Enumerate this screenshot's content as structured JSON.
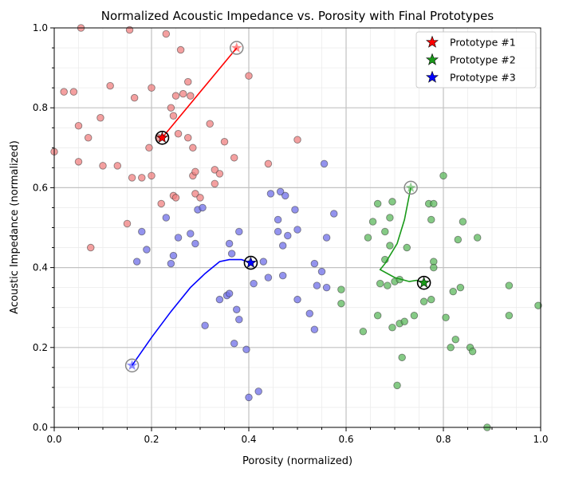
{
  "chart_data": {
    "type": "scatter",
    "title": "Normalized Acoustic Impedance vs. Porosity with Final Prototypes",
    "xlabel": "Porosity (normalized)",
    "ylabel": "Acoustic Impedance (normalized)",
    "xlim": [
      0.0,
      1.0
    ],
    "ylim": [
      0.0,
      1.0
    ],
    "xticks": [
      "0.0",
      "0.2",
      "0.4",
      "0.6",
      "0.8",
      "1.0"
    ],
    "yticks": [
      "0.0",
      "0.2",
      "0.4",
      "0.6",
      "0.8",
      "1.0"
    ],
    "grid": true,
    "legend_position": "top-right",
    "legend": [
      "Prototype #1",
      "Prototype #2",
      "Prototype #3"
    ],
    "colors": {
      "red": "#f08080",
      "green": "#5cb85c",
      "blue": "#6f6fe8",
      "red_line": "#ff0000",
      "green_line": "#1a9a1a",
      "blue_line": "#0000ff"
    },
    "clusters": [
      {
        "color": "red",
        "points": [
          [
            0.0,
            0.69
          ],
          [
            0.02,
            0.84
          ],
          [
            0.04,
            0.84
          ],
          [
            0.05,
            0.755
          ],
          [
            0.05,
            0.665
          ],
          [
            0.055,
            1.0
          ],
          [
            0.07,
            0.725
          ],
          [
            0.075,
            0.45
          ],
          [
            0.095,
            0.775
          ],
          [
            0.1,
            0.655
          ],
          [
            0.115,
            0.855
          ],
          [
            0.13,
            0.655
          ],
          [
            0.15,
            0.51
          ],
          [
            0.155,
            0.995
          ],
          [
            0.16,
            0.625
          ],
          [
            0.165,
            0.825
          ],
          [
            0.18,
            0.625
          ],
          [
            0.195,
            0.7
          ],
          [
            0.2,
            0.85
          ],
          [
            0.2,
            0.63
          ],
          [
            0.215,
            0.725
          ],
          [
            0.22,
            0.56
          ],
          [
            0.23,
            0.985
          ],
          [
            0.24,
            0.8
          ],
          [
            0.245,
            0.78
          ],
          [
            0.245,
            0.58
          ],
          [
            0.25,
            0.83
          ],
          [
            0.25,
            0.575
          ],
          [
            0.255,
            0.735
          ],
          [
            0.26,
            0.945
          ],
          [
            0.265,
            0.835
          ],
          [
            0.275,
            0.865
          ],
          [
            0.275,
            0.725
          ],
          [
            0.28,
            0.83
          ],
          [
            0.285,
            0.7
          ],
          [
            0.285,
            0.63
          ],
          [
            0.29,
            0.64
          ],
          [
            0.29,
            0.585
          ],
          [
            0.3,
            0.575
          ],
          [
            0.32,
            0.76
          ],
          [
            0.33,
            0.645
          ],
          [
            0.33,
            0.61
          ],
          [
            0.34,
            0.635
          ],
          [
            0.35,
            0.715
          ],
          [
            0.37,
            0.675
          ],
          [
            0.4,
            0.88
          ],
          [
            0.44,
            0.66
          ],
          [
            0.5,
            0.72
          ]
        ]
      },
      {
        "color": "green",
        "points": [
          [
            0.59,
            0.345
          ],
          [
            0.59,
            0.31
          ],
          [
            0.635,
            0.24
          ],
          [
            0.645,
            0.475
          ],
          [
            0.655,
            0.515
          ],
          [
            0.665,
            0.56
          ],
          [
            0.665,
            0.28
          ],
          [
            0.67,
            0.36
          ],
          [
            0.68,
            0.49
          ],
          [
            0.68,
            0.42
          ],
          [
            0.685,
            0.355
          ],
          [
            0.69,
            0.525
          ],
          [
            0.69,
            0.455
          ],
          [
            0.695,
            0.565
          ],
          [
            0.695,
            0.25
          ],
          [
            0.7,
            0.365
          ],
          [
            0.705,
            0.105
          ],
          [
            0.71,
            0.26
          ],
          [
            0.71,
            0.37
          ],
          [
            0.715,
            0.175
          ],
          [
            0.72,
            0.265
          ],
          [
            0.725,
            0.45
          ],
          [
            0.74,
            0.28
          ],
          [
            0.76,
            0.315
          ],
          [
            0.77,
            0.56
          ],
          [
            0.775,
            0.32
          ],
          [
            0.775,
            0.52
          ],
          [
            0.78,
            0.56
          ],
          [
            0.78,
            0.415
          ],
          [
            0.78,
            0.4
          ],
          [
            0.8,
            0.63
          ],
          [
            0.805,
            0.275
          ],
          [
            0.815,
            0.2
          ],
          [
            0.82,
            0.34
          ],
          [
            0.825,
            0.22
          ],
          [
            0.83,
            0.47
          ],
          [
            0.835,
            0.35
          ],
          [
            0.84,
            0.515
          ],
          [
            0.855,
            0.2
          ],
          [
            0.86,
            0.19
          ],
          [
            0.87,
            0.475
          ],
          [
            0.89,
            0.0
          ],
          [
            0.935,
            0.355
          ],
          [
            0.935,
            0.28
          ],
          [
            0.995,
            0.305
          ]
        ]
      },
      {
        "color": "blue",
        "points": [
          [
            0.17,
            0.415
          ],
          [
            0.18,
            0.49
          ],
          [
            0.19,
            0.445
          ],
          [
            0.23,
            0.525
          ],
          [
            0.24,
            0.41
          ],
          [
            0.245,
            0.43
          ],
          [
            0.255,
            0.475
          ],
          [
            0.28,
            0.485
          ],
          [
            0.29,
            0.46
          ],
          [
            0.295,
            0.545
          ],
          [
            0.305,
            0.55
          ],
          [
            0.31,
            0.255
          ],
          [
            0.34,
            0.32
          ],
          [
            0.355,
            0.33
          ],
          [
            0.36,
            0.335
          ],
          [
            0.36,
            0.46
          ],
          [
            0.365,
            0.435
          ],
          [
            0.37,
            0.21
          ],
          [
            0.375,
            0.295
          ],
          [
            0.38,
            0.49
          ],
          [
            0.38,
            0.27
          ],
          [
            0.395,
            0.195
          ],
          [
            0.4,
            0.075
          ],
          [
            0.41,
            0.36
          ],
          [
            0.42,
            0.09
          ],
          [
            0.43,
            0.415
          ],
          [
            0.44,
            0.375
          ],
          [
            0.445,
            0.585
          ],
          [
            0.46,
            0.49
          ],
          [
            0.46,
            0.52
          ],
          [
            0.465,
            0.59
          ],
          [
            0.47,
            0.455
          ],
          [
            0.47,
            0.38
          ],
          [
            0.475,
            0.58
          ],
          [
            0.48,
            0.48
          ],
          [
            0.495,
            0.545
          ],
          [
            0.5,
            0.495
          ],
          [
            0.5,
            0.32
          ],
          [
            0.525,
            0.285
          ],
          [
            0.535,
            0.41
          ],
          [
            0.535,
            0.245
          ],
          [
            0.54,
            0.355
          ],
          [
            0.55,
            0.39
          ],
          [
            0.555,
            0.66
          ],
          [
            0.56,
            0.475
          ],
          [
            0.56,
            0.35
          ],
          [
            0.575,
            0.535
          ]
        ]
      }
    ],
    "trajectories": [
      {
        "name": "Prototype #1",
        "color": "red_line",
        "path": [
          [
            0.375,
            0.95
          ],
          [
            0.222,
            0.725
          ]
        ],
        "start": [
          0.375,
          0.95
        ],
        "final": [
          0.222,
          0.725
        ]
      },
      {
        "name": "Prototype #2",
        "color": "green_line",
        "path": [
          [
            0.733,
            0.6
          ],
          [
            0.72,
            0.52
          ],
          [
            0.705,
            0.46
          ],
          [
            0.68,
            0.41
          ],
          [
            0.67,
            0.395
          ],
          [
            0.7,
            0.375
          ],
          [
            0.73,
            0.365
          ],
          [
            0.745,
            0.368
          ],
          [
            0.76,
            0.362
          ]
        ],
        "start": [
          0.733,
          0.6
        ],
        "final": [
          0.76,
          0.362
        ]
      },
      {
        "name": "Prototype #3",
        "color": "blue_line",
        "path": [
          [
            0.16,
            0.155
          ],
          [
            0.2,
            0.225
          ],
          [
            0.24,
            0.29
          ],
          [
            0.28,
            0.35
          ],
          [
            0.31,
            0.385
          ],
          [
            0.34,
            0.415
          ],
          [
            0.36,
            0.42
          ],
          [
            0.385,
            0.42
          ],
          [
            0.404,
            0.412
          ]
        ],
        "start": [
          0.16,
          0.155
        ],
        "final": [
          0.404,
          0.412
        ]
      }
    ]
  }
}
